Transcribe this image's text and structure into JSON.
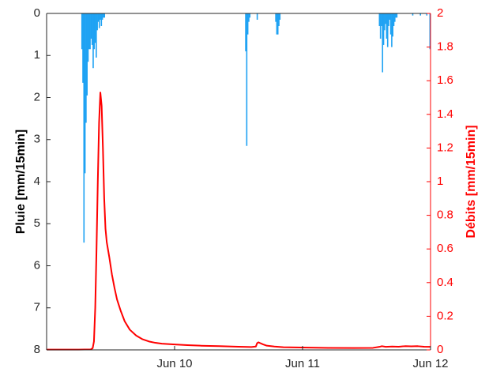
{
  "chart_data": {
    "type": "bar+line",
    "x_ticks": [
      {
        "x": 1.0,
        "label": "Jun 10"
      },
      {
        "x": 2.0,
        "label": "Jun 11"
      },
      {
        "x": 3.0,
        "label": "Jun 12"
      }
    ],
    "xlim": [
      0.0,
      3.0
    ],
    "y_left": {
      "label": "Pluie [mm/15min]",
      "lim": [
        0,
        8
      ],
      "reversed": true,
      "ticks": [
        "0",
        "1",
        "2",
        "3",
        "4",
        "5",
        "6",
        "7",
        "8"
      ]
    },
    "y_right": {
      "label": "Débits [mm/15min]",
      "lim": [
        0,
        2
      ],
      "ticks": [
        "0",
        "0.2",
        "0.4",
        "0.6",
        "0.8",
        "1",
        "1.2",
        "1.4",
        "1.6",
        "1.8",
        "2"
      ]
    },
    "colors": {
      "rain": "#1fa2f3",
      "flow": "#ff0000",
      "right_axis": "#ff0000",
      "left_axis": "#262626"
    },
    "rain": [
      {
        "x": 0.275,
        "v": 0.85
      },
      {
        "x": 0.283,
        "v": 1.65
      },
      {
        "x": 0.291,
        "v": 5.45
      },
      {
        "x": 0.299,
        "v": 3.8
      },
      {
        "x": 0.307,
        "v": 2.6
      },
      {
        "x": 0.315,
        "v": 1.95
      },
      {
        "x": 0.323,
        "v": 1.15
      },
      {
        "x": 0.331,
        "v": 0.85
      },
      {
        "x": 0.339,
        "v": 0.85
      },
      {
        "x": 0.347,
        "v": 0.6
      },
      {
        "x": 0.355,
        "v": 0.75
      },
      {
        "x": 0.363,
        "v": 1.3
      },
      {
        "x": 0.371,
        "v": 0.85
      },
      {
        "x": 0.379,
        "v": 0.7
      },
      {
        "x": 0.387,
        "v": 1.05
      },
      {
        "x": 0.395,
        "v": 0.4
      },
      {
        "x": 0.403,
        "v": 0.2
      },
      {
        "x": 0.411,
        "v": 0.35
      },
      {
        "x": 0.419,
        "v": 0.15
      },
      {
        "x": 0.427,
        "v": 0.3
      },
      {
        "x": 0.435,
        "v": 0.15
      },
      {
        "x": 0.443,
        "v": 0.1
      },
      {
        "x": 0.451,
        "v": 0.1
      },
      {
        "x": 1.555,
        "v": 0.9
      },
      {
        "x": 1.563,
        "v": 3.15
      },
      {
        "x": 1.571,
        "v": 0.5
      },
      {
        "x": 1.579,
        "v": 0.2
      },
      {
        "x": 1.587,
        "v": 0.1
      },
      {
        "x": 1.645,
        "v": 0.15
      },
      {
        "x": 1.79,
        "v": 0.2
      },
      {
        "x": 1.798,
        "v": 0.5
      },
      {
        "x": 1.806,
        "v": 0.5
      },
      {
        "x": 1.814,
        "v": 0.3
      },
      {
        "x": 1.822,
        "v": 0.15
      },
      {
        "x": 2.6,
        "v": 0.3
      },
      {
        "x": 2.608,
        "v": 0.6
      },
      {
        "x": 2.616,
        "v": 0.3
      },
      {
        "x": 2.624,
        "v": 1.4
      },
      {
        "x": 2.632,
        "v": 0.75
      },
      {
        "x": 2.64,
        "v": 0.4
      },
      {
        "x": 2.648,
        "v": 0.25
      },
      {
        "x": 2.656,
        "v": 0.6
      },
      {
        "x": 2.664,
        "v": 0.8
      },
      {
        "x": 2.672,
        "v": 0.3
      },
      {
        "x": 2.68,
        "v": 0.15
      },
      {
        "x": 2.688,
        "v": 0.5
      },
      {
        "x": 2.696,
        "v": 0.8
      },
      {
        "x": 2.704,
        "v": 0.55
      },
      {
        "x": 2.712,
        "v": 0.3
      },
      {
        "x": 2.72,
        "v": 0.2
      },
      {
        "x": 2.728,
        "v": 0.1
      },
      {
        "x": 2.736,
        "v": 0.1
      },
      {
        "x": 2.86,
        "v": 0.05
      },
      {
        "x": 2.92,
        "v": 0.05
      },
      {
        "x": 2.97,
        "v": 0.05
      },
      {
        "x": 2.995,
        "v": 0.85
      }
    ],
    "flow": [
      [
        0.0,
        0.002
      ],
      [
        0.25,
        0.002
      ],
      [
        0.345,
        0.003
      ],
      [
        0.36,
        0.01
      ],
      [
        0.37,
        0.05
      ],
      [
        0.38,
        0.25
      ],
      [
        0.39,
        0.6
      ],
      [
        0.4,
        1.0
      ],
      [
        0.41,
        1.35
      ],
      [
        0.42,
        1.53
      ],
      [
        0.43,
        1.45
      ],
      [
        0.44,
        1.2
      ],
      [
        0.45,
        0.9
      ],
      [
        0.46,
        0.72
      ],
      [
        0.47,
        0.64
      ],
      [
        0.49,
        0.55
      ],
      [
        0.51,
        0.45
      ],
      [
        0.53,
        0.37
      ],
      [
        0.55,
        0.3
      ],
      [
        0.58,
        0.23
      ],
      [
        0.61,
        0.17
      ],
      [
        0.65,
        0.12
      ],
      [
        0.7,
        0.085
      ],
      [
        0.75,
        0.063
      ],
      [
        0.8,
        0.05
      ],
      [
        0.85,
        0.042
      ],
      [
        0.9,
        0.037
      ],
      [
        1.0,
        0.032
      ],
      [
        1.1,
        0.028
      ],
      [
        1.2,
        0.025
      ],
      [
        1.35,
        0.022
      ],
      [
        1.5,
        0.019
      ],
      [
        1.6,
        0.017
      ],
      [
        1.635,
        0.02
      ],
      [
        1.645,
        0.04
      ],
      [
        1.655,
        0.045
      ],
      [
        1.67,
        0.04
      ],
      [
        1.69,
        0.033
      ],
      [
        1.72,
        0.025
      ],
      [
        1.78,
        0.02
      ],
      [
        1.85,
        0.016
      ],
      [
        2.0,
        0.014
      ],
      [
        2.2,
        0.012
      ],
      [
        2.4,
        0.011
      ],
      [
        2.55,
        0.012
      ],
      [
        2.6,
        0.018
      ],
      [
        2.62,
        0.022
      ],
      [
        2.65,
        0.018
      ],
      [
        2.7,
        0.02
      ],
      [
        2.75,
        0.019
      ],
      [
        2.8,
        0.022
      ],
      [
        2.85,
        0.021
      ],
      [
        2.9,
        0.022
      ],
      [
        2.95,
        0.019
      ],
      [
        3.0,
        0.018
      ]
    ]
  }
}
